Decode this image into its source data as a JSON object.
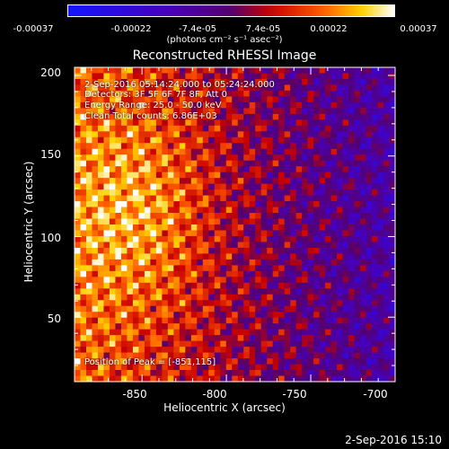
{
  "colorbar": {
    "ticks": [
      "-0.00037",
      "-0.00022",
      "-7.4e-05",
      "7.4e-05",
      "0.00022",
      "0.00037"
    ],
    "unit": "(photons cm⁻² s⁻¹ asec⁻²)"
  },
  "title": "Reconstructed RHESSI Image",
  "annotations": {
    "time": "2-Sep-2016 05:14:24.000 to 05:24:24.000",
    "detectors": "Detectors: 3F 5F 6F 7F 8F, Att 0",
    "energy": "Energy Range: 25.0 - 50.0 keV",
    "clean": "Clean    Total counts: 6.86E+03",
    "peak": "Position of Peak = [-851,115]"
  },
  "footer": "2-Sep-2016 15:10",
  "chart_data": {
    "type": "heatmap",
    "title": "Reconstructed RHESSI Image",
    "xlabel": "Heliocentric X (arcsec)",
    "ylabel": "Heliocentric Y (arcsec)",
    "xlim": [
      -890,
      -700
    ],
    "ylim": [
      10,
      205
    ],
    "xticks": [
      -850,
      -800,
      -750,
      -700
    ],
    "yticks": [
      50,
      100,
      150,
      200
    ],
    "zlim": [
      -0.00037,
      0.00037
    ],
    "peak_position": [
      -851,
      115
    ]
  }
}
